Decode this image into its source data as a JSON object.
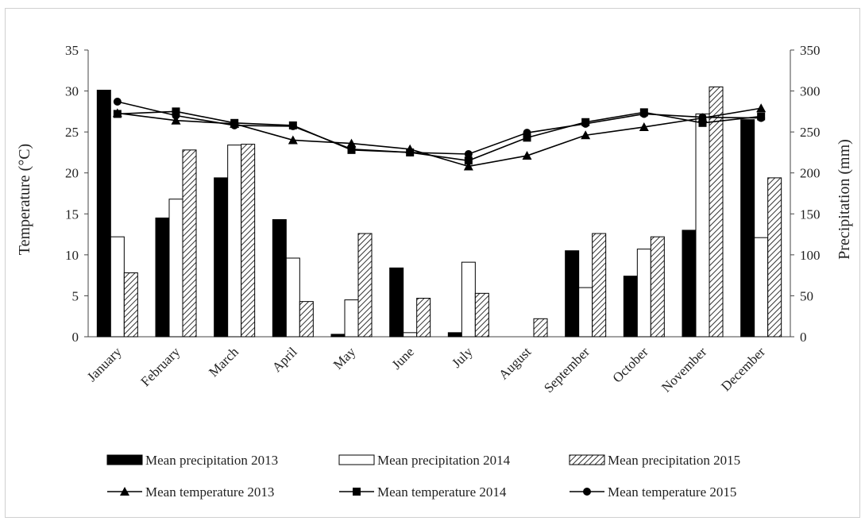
{
  "chart_data": {
    "type": "bar",
    "title": "",
    "categories": [
      "January",
      "February",
      "March",
      "April",
      "May",
      "June",
      "July",
      "August",
      "September",
      "October",
      "November",
      "December"
    ],
    "y_left": {
      "label": "Temperature (°C)",
      "range": [
        0,
        35
      ],
      "ticks": [
        "0",
        "5",
        "10",
        "15",
        "20",
        "25",
        "30",
        "35"
      ]
    },
    "y_right": {
      "label": "Precipitation (mm)",
      "range": [
        0,
        350
      ],
      "ticks": [
        "0",
        "50",
        "100",
        "150",
        "200",
        "250",
        "300",
        "350"
      ]
    },
    "bar_series": [
      {
        "name": "Mean precipitation 2013",
        "axis": "right",
        "fill": "#000000",
        "values": [
          301,
          145,
          194,
          143,
          3,
          84,
          5,
          0,
          105,
          74,
          130,
          265
        ]
      },
      {
        "name": "Mean precipitation 2014",
        "axis": "right",
        "fill": "#ffffff",
        "values": [
          122,
          168,
          234,
          96,
          45,
          5,
          91,
          0,
          60,
          107,
          272,
          121
        ]
      },
      {
        "name": "Mean precipitation 2015",
        "axis": "right",
        "fill": "hatch",
        "values": [
          78,
          228,
          235,
          43,
          126,
          47,
          53,
          22,
          126,
          122,
          305,
          194
        ]
      }
    ],
    "line_series": [
      {
        "name": "Mean temperature 2013",
        "axis": "left",
        "marker": "triangle",
        "values": [
          27.3,
          26.4,
          26.0,
          24.0,
          23.6,
          22.9,
          20.8,
          22.1,
          24.6,
          25.6,
          26.7,
          27.9
        ]
      },
      {
        "name": "Mean temperature 2014",
        "axis": "left",
        "marker": "square",
        "values": [
          27.2,
          27.5,
          26.1,
          25.8,
          22.8,
          22.5,
          21.5,
          24.3,
          26.2,
          27.4,
          26.1,
          26.9
        ]
      },
      {
        "name": "Mean temperature 2015",
        "axis": "left",
        "marker": "circle",
        "values": [
          28.7,
          27.0,
          25.8,
          25.7,
          22.9,
          22.5,
          22.3,
          24.9,
          26.0,
          27.2,
          26.8,
          26.7
        ]
      }
    ],
    "legend_position": "bottom",
    "grid": false
  }
}
